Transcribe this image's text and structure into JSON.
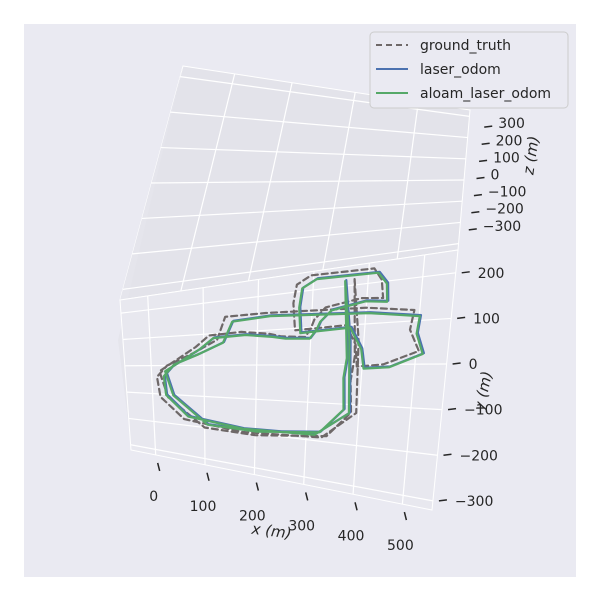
{
  "chart_data": {
    "type": "line",
    "title": "",
    "projection": "3d",
    "xlabel": "x (m)",
    "ylabel": "y (m)",
    "zlabel": "z (m)",
    "x_ticks": [
      "0",
      "100",
      "200",
      "300",
      "400",
      "500"
    ],
    "y_ticks": [
      "−300",
      "−200",
      "−100",
      "0",
      "100",
      "200"
    ],
    "z_ticks": [
      "300",
      "200",
      "100",
      "0",
      "−100",
      "−200",
      "−300"
    ],
    "xlim": [
      -50,
      560
    ],
    "ylim": [
      -320,
      250
    ],
    "zlim": [
      -330,
      330
    ],
    "grid": true,
    "legend_position": "top-right",
    "series": [
      {
        "name": "ground_truth",
        "style": "dashed",
        "color": "#6e6868",
        "points": [
          [
            375,
            215
          ],
          [
            390,
            60
          ],
          [
            395,
            -120
          ],
          [
            330,
            -190
          ],
          [
            175,
            -200
          ],
          [
            60,
            -180
          ],
          [
            15,
            -110
          ],
          [
            10,
            -40
          ],
          [
            30,
            0
          ],
          [
            80,
            40
          ],
          [
            125,
            80
          ],
          [
            140,
            150
          ],
          [
            215,
            150
          ],
          [
            400,
            140
          ],
          [
            490,
            125
          ],
          [
            485,
            80
          ],
          [
            505,
            30
          ],
          [
            440,
            0
          ],
          [
            390,
            -5
          ],
          [
            385,
            50
          ],
          [
            365,
            100
          ],
          [
            270,
            95
          ],
          [
            265,
            170
          ],
          [
            270,
            220
          ],
          [
            295,
            240
          ],
          [
            410,
            235
          ],
          [
            425,
            205
          ],
          [
            430,
            160
          ],
          [
            390,
            165
          ],
          [
            325,
            150
          ],
          [
            305,
            120
          ],
          [
            300,
            100
          ],
          [
            290,
            75
          ],
          [
            245,
            80
          ],
          [
            220,
            90
          ],
          [
            170,
            100
          ],
          [
            110,
            95
          ],
          [
            85,
            60
          ],
          [
            15,
            -20
          ],
          [
            30,
            -110
          ],
          [
            100,
            -200
          ],
          [
            200,
            -205
          ],
          [
            340,
            -185
          ],
          [
            385,
            -120
          ],
          [
            380,
            -40
          ],
          [
            385,
            20
          ],
          [
            375,
            215
          ]
        ]
      },
      {
        "name": "laser_odom",
        "style": "solid",
        "color": "#4c72b0",
        "points": [
          [
            360,
            215
          ],
          [
            375,
            60
          ],
          [
            383,
            -120
          ],
          [
            318,
            -183
          ],
          [
            178,
            -188
          ],
          [
            70,
            -168
          ],
          [
            28,
            -100
          ],
          [
            25,
            -35
          ],
          [
            45,
            5
          ],
          [
            92,
            38
          ],
          [
            138,
            72
          ],
          [
            155,
            135
          ],
          [
            225,
            142
          ],
          [
            408,
            128
          ],
          [
            503,
            112
          ],
          [
            500,
            72
          ],
          [
            515,
            25
          ],
          [
            453,
            -5
          ],
          [
            405,
            -8
          ],
          [
            398,
            40
          ],
          [
            375,
            95
          ],
          [
            282,
            88
          ],
          [
            278,
            158
          ],
          [
            282,
            210
          ],
          [
            308,
            230
          ],
          [
            420,
            225
          ],
          [
            437,
            196
          ],
          [
            440,
            152
          ],
          [
            400,
            158
          ],
          [
            338,
            143
          ],
          [
            318,
            115
          ],
          [
            312,
            95
          ],
          [
            300,
            72
          ],
          [
            255,
            75
          ],
          [
            230,
            82
          ],
          [
            180,
            92
          ],
          [
            120,
            88
          ],
          [
            95,
            55
          ],
          [
            28,
            -18
          ],
          [
            42,
            -100
          ],
          [
            108,
            -188
          ],
          [
            205,
            -192
          ],
          [
            328,
            -175
          ],
          [
            372,
            -112
          ],
          [
            368,
            -32
          ],
          [
            372,
            18
          ],
          [
            360,
            215
          ]
        ]
      },
      {
        "name": "aloam_laser_odom",
        "style": "solid",
        "color": "#55a868",
        "points": [
          [
            358,
            213
          ],
          [
            373,
            58
          ],
          [
            381,
            -122
          ],
          [
            316,
            -185
          ],
          [
            176,
            -190
          ],
          [
            68,
            -170
          ],
          [
            26,
            -102
          ],
          [
            23,
            -37
          ],
          [
            43,
            3
          ],
          [
            90,
            36
          ],
          [
            136,
            70
          ],
          [
            153,
            133
          ],
          [
            223,
            140
          ],
          [
            406,
            126
          ],
          [
            501,
            110
          ],
          [
            498,
            70
          ],
          [
            513,
            23
          ],
          [
            451,
            -7
          ],
          [
            403,
            -10
          ],
          [
            396,
            38
          ],
          [
            373,
            93
          ],
          [
            280,
            86
          ],
          [
            276,
            156
          ],
          [
            280,
            208
          ],
          [
            306,
            228
          ],
          [
            418,
            223
          ],
          [
            435,
            194
          ],
          [
            438,
            150
          ],
          [
            398,
            156
          ],
          [
            336,
            141
          ],
          [
            316,
            113
          ],
          [
            310,
            93
          ],
          [
            298,
            70
          ],
          [
            253,
            73
          ],
          [
            228,
            80
          ],
          [
            178,
            90
          ],
          [
            118,
            86
          ],
          [
            93,
            53
          ],
          [
            26,
            -20
          ],
          [
            40,
            -102
          ],
          [
            106,
            -190
          ],
          [
            203,
            -194
          ],
          [
            326,
            -177
          ],
          [
            370,
            -114
          ],
          [
            366,
            -34
          ],
          [
            370,
            16
          ],
          [
            358,
            213
          ]
        ]
      }
    ]
  }
}
